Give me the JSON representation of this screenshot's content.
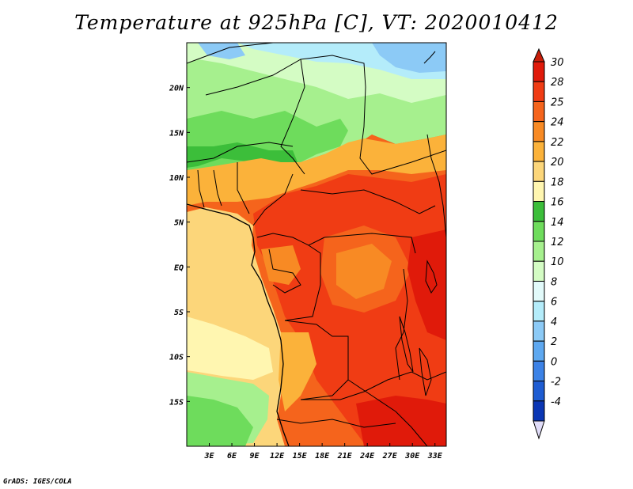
{
  "title": "Temperature at 925hPa [C], VT: 2020010412",
  "credit": "GrADS: IGES/COLA",
  "map": {
    "lon_range": [
      0,
      34.5
    ],
    "lat_range": [
      -20,
      25
    ],
    "x_ticks": [
      {
        "lon": 3,
        "label": "3E"
      },
      {
        "lon": 6,
        "label": "6E"
      },
      {
        "lon": 9,
        "label": "9E"
      },
      {
        "lon": 12,
        "label": "12E"
      },
      {
        "lon": 15,
        "label": "15E"
      },
      {
        "lon": 18,
        "label": "18E"
      },
      {
        "lon": 21,
        "label": "21E"
      },
      {
        "lon": 24,
        "label": "24E"
      },
      {
        "lon": 27,
        "label": "27E"
      },
      {
        "lon": 30,
        "label": "30E"
      },
      {
        "lon": 33,
        "label": "33E"
      }
    ],
    "y_ticks": [
      {
        "lat": 20,
        "label": "20N"
      },
      {
        "lat": 15,
        "label": "15N"
      },
      {
        "lat": 10,
        "label": "10N"
      },
      {
        "lat": 5,
        "label": "5N"
      },
      {
        "lat": 0,
        "label": "EQ"
      },
      {
        "lat": -5,
        "label": "5S"
      },
      {
        "lat": -10,
        "label": "10S"
      },
      {
        "lat": -15,
        "label": "15S"
      }
    ]
  },
  "colorbar": {
    "levels": [
      {
        "label": "30",
        "color": "#e01a0a"
      },
      {
        "label": "28",
        "color": "#f03c14"
      },
      {
        "label": "25",
        "color": "#f5641c"
      },
      {
        "label": "24",
        "color": "#f88a24"
      },
      {
        "label": "22",
        "color": "#fbb23a"
      },
      {
        "label": "20",
        "color": "#fcd67a"
      },
      {
        "label": "18",
        "color": "#fff6b0"
      },
      {
        "label": "16",
        "color": "#3cbe3a"
      },
      {
        "label": "14",
        "color": "#6edc5c"
      },
      {
        "label": "12",
        "color": "#a6f08e"
      },
      {
        "label": "10",
        "color": "#d4fcc4"
      },
      {
        "label": "8",
        "color": "#e2fafa"
      },
      {
        "label": "6",
        "color": "#b4ecfa"
      },
      {
        "label": "4",
        "color": "#8ccaf6"
      },
      {
        "label": "2",
        "color": "#5ea8f0"
      },
      {
        "label": "0",
        "color": "#3c82e6"
      },
      {
        "label": "-2",
        "color": "#1e5cd2"
      },
      {
        "label": "-4",
        "color": "#0a36b4"
      }
    ],
    "top_color": "#c81e0a",
    "bottom_under_color": "#140a6e",
    "bottom_color": "#e0dcf8"
  }
}
